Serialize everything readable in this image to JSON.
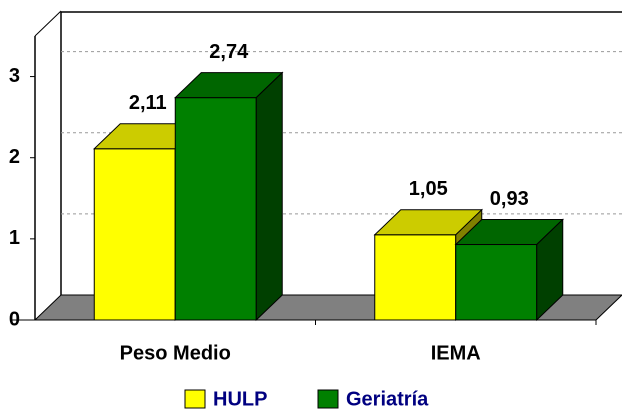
{
  "chart_data": {
    "type": "bar",
    "categories": [
      "Peso Medio",
      "IEMA"
    ],
    "series": [
      {
        "name": "HULP",
        "color": "#ffff00",
        "values": [
          2.11,
          1.05
        ],
        "value_labels": [
          "2,11",
          "1,05"
        ]
      },
      {
        "name": "Geriatría",
        "color": "#008000",
        "values": [
          2.74,
          0.93
        ],
        "value_labels": [
          "2,74",
          "0,93"
        ]
      }
    ],
    "ylim": [
      0,
      3.5
    ],
    "yticks": [
      0,
      1,
      2,
      3
    ],
    "grid": true,
    "legend": "bottom"
  }
}
